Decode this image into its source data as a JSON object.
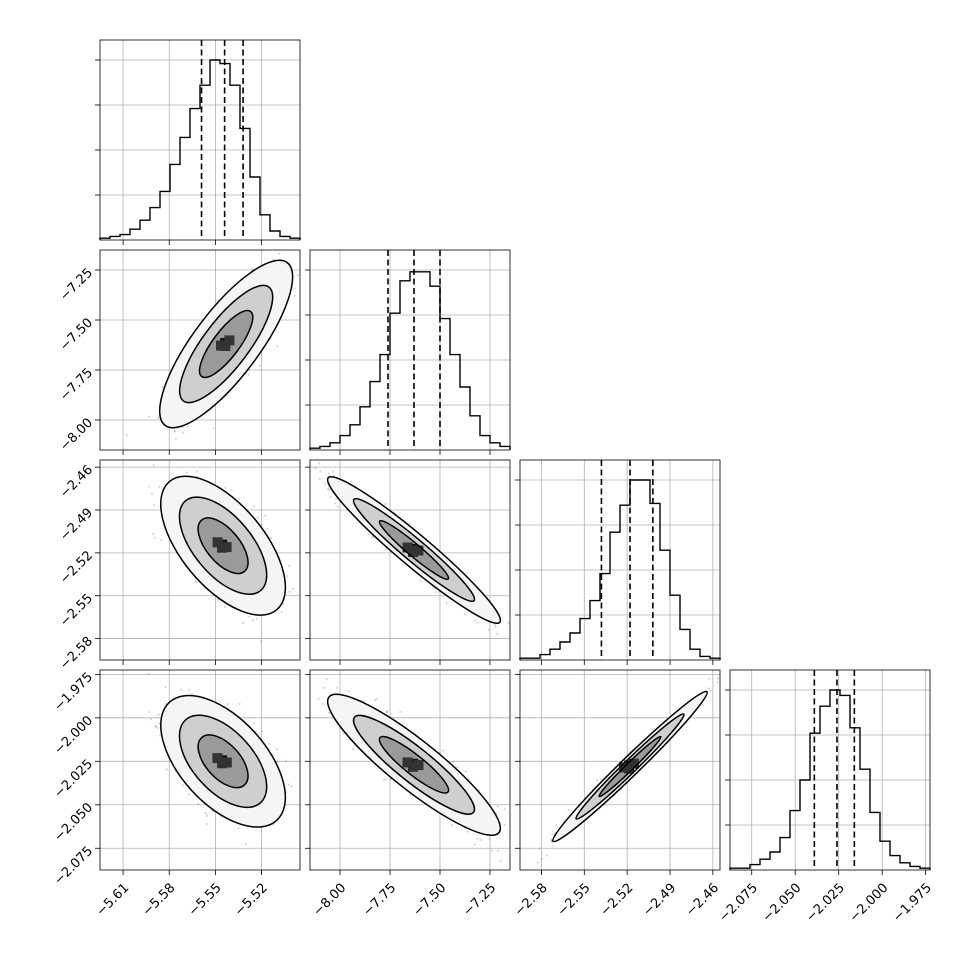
{
  "chart_data": {
    "type": "corner",
    "parameters": [
      {
        "range": [
          -5.625,
          -5.495
        ],
        "ticks": [
          -5.61,
          -5.58,
          -5.55,
          -5.52
        ],
        "tick_labels": [
          "−5.61",
          "−5.58",
          "−5.55",
          "−5.52"
        ],
        "quantiles": [
          -5.559,
          -5.544,
          -5.532
        ]
      },
      {
        "range": [
          -8.15,
          -7.15
        ],
        "ticks": [
          -8.0,
          -7.75,
          -7.5,
          -7.25
        ],
        "tick_labels": [
          "−8.00",
          "−7.75",
          "−7.50",
          "−7.25"
        ],
        "quantiles": [
          -7.76,
          -7.63,
          -7.5
        ]
      },
      {
        "range": [
          -2.595,
          -2.455
        ],
        "ticks": [
          -2.58,
          -2.55,
          -2.52,
          -2.49,
          -2.46
        ],
        "tick_labels": [
          "−2.58",
          "−2.55",
          "−2.52",
          "−2.49",
          "−2.46"
        ],
        "quantiles": [
          -2.538,
          -2.518,
          -2.502
        ]
      },
      {
        "range": [
          -2.0875,
          -1.9725
        ],
        "ticks": [
          -2.075,
          -2.05,
          -2.025,
          -2.0,
          -1.975
        ],
        "tick_labels": [
          "−2.075",
          "−2.050",
          "−2.025",
          "−2.000",
          "−1.975"
        ],
        "quantiles": [
          -2.039,
          -2.026,
          -2.016
        ]
      }
    ],
    "histograms": [
      [
        0.01,
        0.02,
        0.03,
        0.06,
        0.11,
        0.18,
        0.27,
        0.42,
        0.57,
        0.73,
        0.86,
        1.0,
        0.98,
        0.86,
        0.62,
        0.35,
        0.14,
        0.05,
        0.02,
        0.01
      ],
      [
        0.01,
        0.02,
        0.04,
        0.08,
        0.14,
        0.24,
        0.38,
        0.53,
        0.76,
        0.94,
        0.99,
        0.99,
        0.91,
        0.73,
        0.53,
        0.35,
        0.19,
        0.08,
        0.04,
        0.02
      ],
      [
        0.01,
        0.01,
        0.03,
        0.06,
        0.1,
        0.15,
        0.23,
        0.33,
        0.48,
        0.71,
        0.86,
        1.0,
        1.0,
        0.87,
        0.61,
        0.36,
        0.17,
        0.06,
        0.02,
        0.01
      ],
      [
        0.01,
        0.01,
        0.03,
        0.06,
        0.1,
        0.18,
        0.33,
        0.5,
        0.76,
        0.91,
        1.0,
        0.97,
        0.79,
        0.56,
        0.32,
        0.16,
        0.08,
        0.04,
        0.02,
        0.01
      ]
    ],
    "scatter_panels": [
      {
        "x": 0,
        "y": 1,
        "center": [
          -5.543,
          -7.62
        ],
        "sx": 0.016,
        "sy": 0.155,
        "rho": 0.8
      },
      {
        "x": 0,
        "y": 2,
        "center": [
          -5.545,
          -2.515
        ],
        "sx": 0.015,
        "sy": 0.018,
        "rho": -0.6
      },
      {
        "x": 1,
        "y": 2,
        "center": [
          -7.63,
          -2.518
        ],
        "sx": 0.16,
        "sy": 0.019,
        "rho": -0.96
      },
      {
        "x": 0,
        "y": 3,
        "center": [
          -5.545,
          -2.025
        ],
        "sx": 0.015,
        "sy": 0.014,
        "rho": -0.55
      },
      {
        "x": 1,
        "y": 3,
        "center": [
          -7.63,
          -2.027
        ],
        "sx": 0.16,
        "sy": 0.015,
        "rho": -0.9
      },
      {
        "x": 2,
        "y": 3,
        "center": [
          -2.518,
          -2.028
        ],
        "sx": 0.02,
        "sy": 0.016,
        "rho": 0.985
      }
    ],
    "contour_sigmas": [
      0.8,
      1.4,
      2.0
    ],
    "grid": true,
    "color": "#000000",
    "point_color": "#444444"
  }
}
